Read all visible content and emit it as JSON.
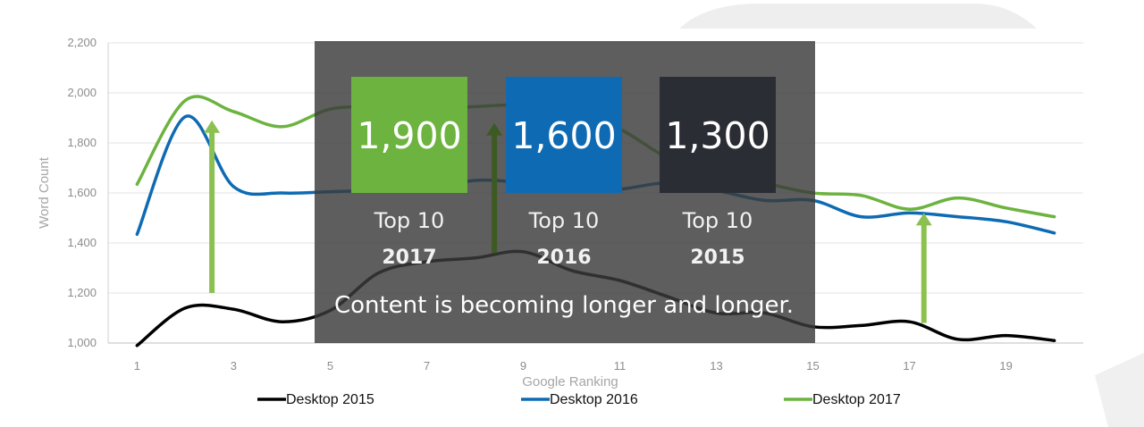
{
  "chart_data": {
    "type": "line",
    "xlabel": "Google Ranking",
    "ylabel": "Word Count",
    "xlim": [
      0.4,
      20.6
    ],
    "ylim": [
      1000,
      2200
    ],
    "x_ticks": [
      1,
      3,
      5,
      7,
      9,
      11,
      13,
      15,
      17,
      19
    ],
    "y_ticks": [
      {
        "value": 1000,
        "label": "1,000"
      },
      {
        "value": 1200,
        "label": "1,200"
      },
      {
        "value": 1400,
        "label": "1,400"
      },
      {
        "value": 1600,
        "label": "1,600"
      },
      {
        "value": 1800,
        "label": "1,800"
      },
      {
        "value": 2000,
        "label": "2,000"
      },
      {
        "value": 2200,
        "label": "2,200"
      }
    ],
    "grid": true,
    "legend_position": "bottom",
    "x": [
      1,
      2,
      3,
      4,
      5,
      6,
      7,
      8,
      9,
      10,
      11,
      12,
      13,
      14,
      15,
      16,
      17,
      18,
      19,
      20
    ],
    "series": [
      {
        "name": "Desktop 2015",
        "color": "#000000",
        "values": [
          990,
          1140,
          1135,
          1085,
          1130,
          1280,
          1325,
          1340,
          1365,
          1290,
          1250,
          1185,
          1120,
          1120,
          1065,
          1070,
          1085,
          1015,
          1030,
          1010
        ]
      },
      {
        "name": "Desktop 2016",
        "color": "#0e6bb3",
        "values": [
          1435,
          1905,
          1625,
          1600,
          1605,
          1610,
          1615,
          1650,
          1640,
          1610,
          1615,
          1640,
          1610,
          1570,
          1570,
          1505,
          1520,
          1505,
          1485,
          1440
        ]
      },
      {
        "name": "Desktop 2017",
        "color": "#6cb33f",
        "values": [
          1635,
          1970,
          1925,
          1865,
          1935,
          1945,
          1935,
          1945,
          1950,
          1910,
          1855,
          1740,
          1690,
          1640,
          1600,
          1590,
          1535,
          1580,
          1540,
          1505
        ]
      }
    ],
    "annotations": {
      "overlay_caption": "Content is becoming longer and longer.",
      "boxes": [
        {
          "value": "1,900",
          "label": "Top 10",
          "year": "2017",
          "color": "#6cb33f"
        },
        {
          "value": "1,600",
          "label": "Top 10",
          "year": "2016",
          "color": "#0e6bb3"
        },
        {
          "value": "1,300",
          "label": "Top 10",
          "year": "2015",
          "color": "#2b2d35"
        }
      ],
      "arrows_at_x": [
        2.55,
        8.4,
        17.3
      ]
    }
  }
}
